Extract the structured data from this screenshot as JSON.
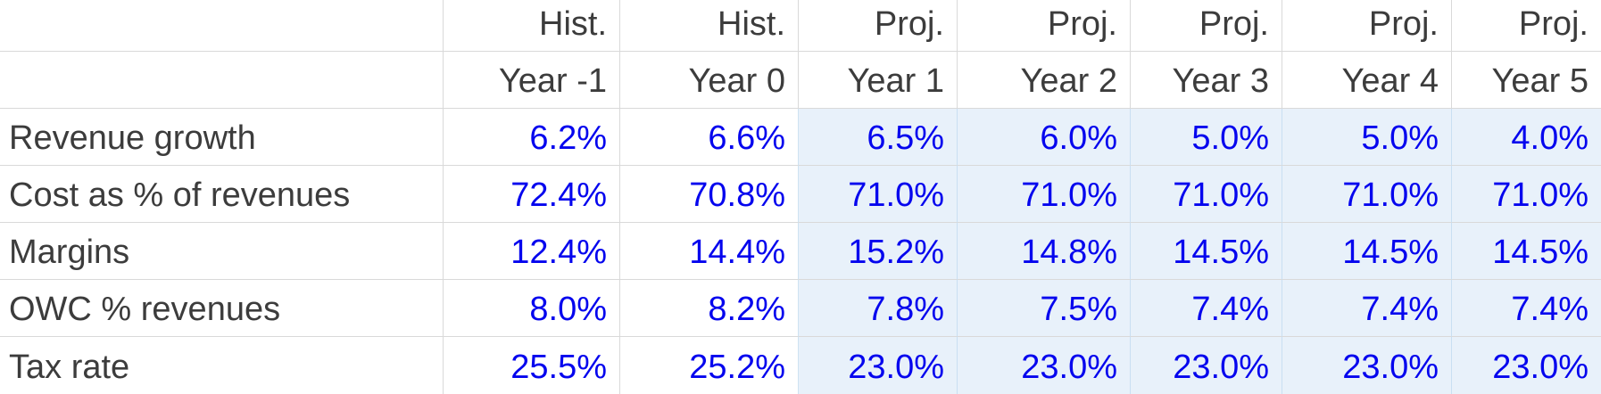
{
  "table": {
    "corner_label": "",
    "period_headers": [
      "Hist.",
      "Hist.",
      "Proj.",
      "Proj.",
      "Proj.",
      "Proj.",
      "Proj."
    ],
    "year_headers": [
      "Year -1",
      "Year 0",
      "Year 1",
      "Year 2",
      "Year 3",
      "Year 4",
      "Year 5"
    ],
    "rows": [
      {
        "label": "Revenue growth",
        "values": [
          "6.2%",
          "6.6%",
          "6.5%",
          "6.0%",
          "5.0%",
          "5.0%",
          "4.0%"
        ]
      },
      {
        "label": "Cost as % of revenues",
        "values": [
          "72.4%",
          "70.8%",
          "71.0%",
          "71.0%",
          "71.0%",
          "71.0%",
          "71.0%"
        ]
      },
      {
        "label": "Margins",
        "values": [
          "12.4%",
          "14.4%",
          "15.2%",
          "14.8%",
          "14.5%",
          "14.5%",
          "14.5%"
        ]
      },
      {
        "label": "OWC % revenues",
        "values": [
          "8.0%",
          "8.2%",
          "7.8%",
          "7.5%",
          "7.4%",
          "7.4%",
          "7.4%"
        ]
      },
      {
        "label": "Tax rate",
        "values": [
          "25.5%",
          "25.2%",
          "23.0%",
          "23.0%",
          "23.0%",
          "23.0%",
          "23.0%"
        ]
      }
    ],
    "historical_column_count": 2,
    "projected_column_count": 5
  },
  "colors": {
    "value_text": "#0505ee",
    "label_text": "#3c3c3c",
    "gridline": "#d9d9d9",
    "projected_fill": "#e8f1fa",
    "projected_gridline": "#c9dff2",
    "background": "#ffffff"
  }
}
